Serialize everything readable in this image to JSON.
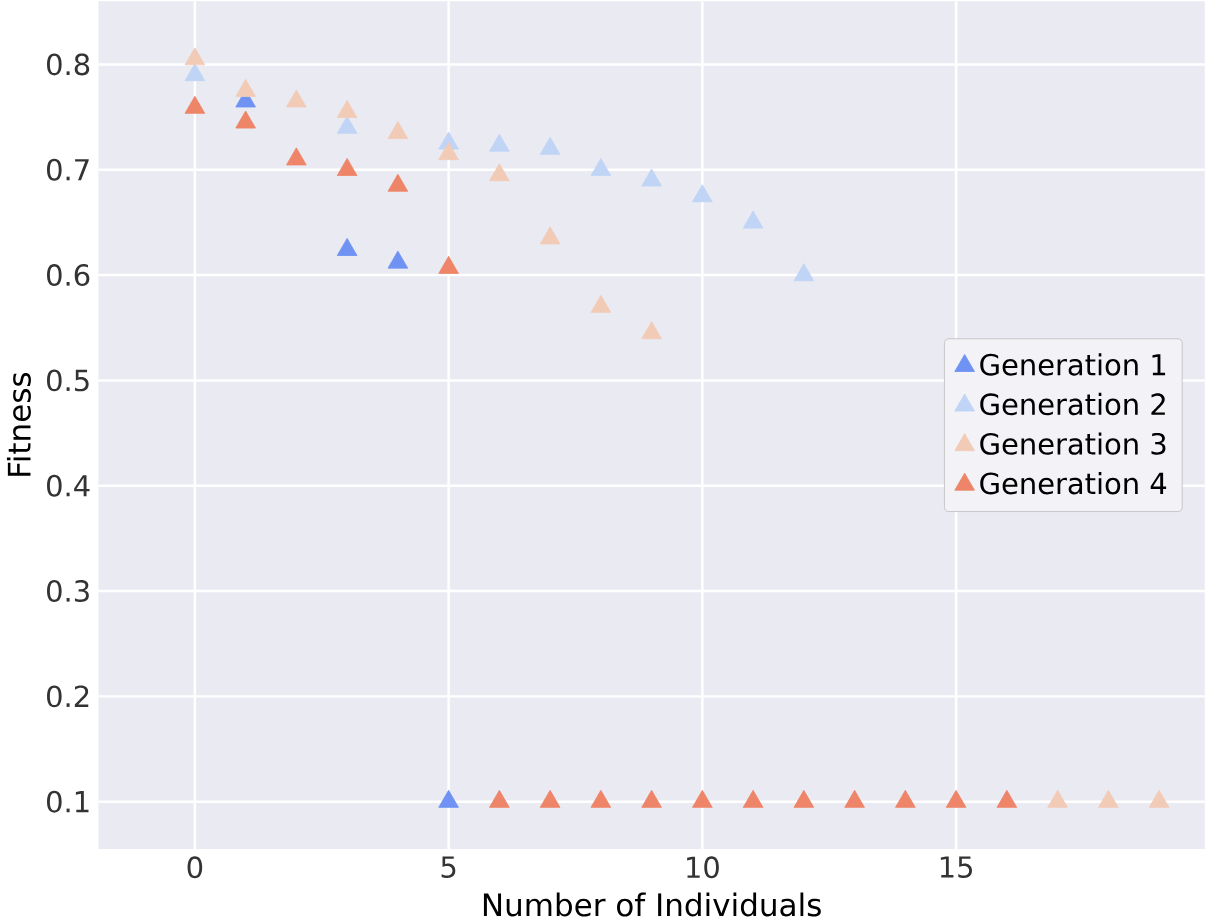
{
  "chart_data": {
    "type": "scatter",
    "xlabel": "Number of Individuals",
    "ylabel": "Fitness",
    "xlim": [
      -1.9,
      19.9
    ],
    "ylim": [
      0.055,
      0.86
    ],
    "xticks": [
      0,
      5,
      10,
      15
    ],
    "yticks": [
      0.1,
      0.2,
      0.3,
      0.4,
      0.5,
      0.6,
      0.7,
      0.8
    ],
    "grid": true,
    "legend": "right",
    "marker": "triangle",
    "series": [
      {
        "name": "Generation 1",
        "color": "#6f92f3",
        "x": [
          1,
          3,
          4,
          5
        ],
        "values": [
          0.765,
          0.624,
          0.612,
          0.1
        ]
      },
      {
        "name": "Generation 2",
        "color": "#c0d4f5",
        "x": [
          0,
          3,
          5,
          6,
          7,
          8,
          9,
          10,
          11,
          12
        ],
        "values": [
          0.79,
          0.74,
          0.725,
          0.723,
          0.72,
          0.7,
          0.69,
          0.675,
          0.65,
          0.6
        ]
      },
      {
        "name": "Generation 3",
        "color": "#f2cbb7",
        "x": [
          0,
          1,
          2,
          3,
          4,
          5,
          6,
          7,
          8,
          9,
          17,
          18,
          19
        ],
        "values": [
          0.805,
          0.775,
          0.765,
          0.755,
          0.735,
          0.715,
          0.695,
          0.635,
          0.57,
          0.545,
          0.1,
          0.1,
          0.1
        ]
      },
      {
        "name": "Generation 4",
        "color": "#ee8468",
        "x": [
          0,
          1,
          2,
          3,
          4,
          5,
          6,
          7,
          8,
          9,
          10,
          11,
          12,
          13,
          14,
          15,
          16
        ],
        "values": [
          0.759,
          0.745,
          0.71,
          0.7,
          0.685,
          0.607,
          0.1,
          0.1,
          0.1,
          0.1,
          0.1,
          0.1,
          0.1,
          0.1,
          0.1,
          0.1,
          0.1
        ]
      }
    ]
  }
}
